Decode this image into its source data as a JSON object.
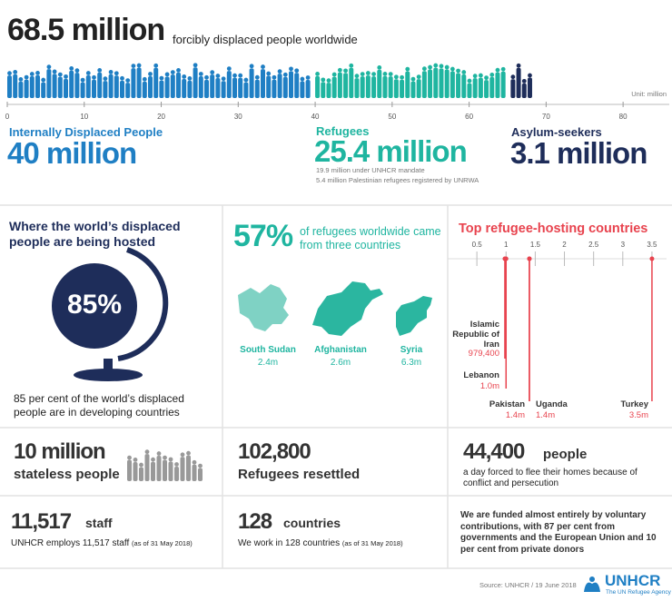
{
  "header": {
    "title": "68.5 million",
    "subtitle": "forcibly displaced people worldwide"
  },
  "population": {
    "unit": "Unit: million",
    "xlim": [
      0,
      86
    ],
    "xticks": [
      0,
      10,
      20,
      30,
      40,
      50,
      60,
      70,
      80
    ],
    "segments": [
      {
        "name": "Internally Displaced People",
        "value": 40,
        "label": "40 million",
        "color": "#1f7fc4"
      },
      {
        "name": "Refugees",
        "value": 25.4,
        "label": "25.4 million",
        "color": "#1fb5a0",
        "notes": [
          "19.9 million under UNHCR mandate",
          "5.4 million Palestinian refugees registered by UNRWA"
        ]
      },
      {
        "name": "Asylum-seekers",
        "value": 3.1,
        "label": "3.1 million",
        "color": "#1e2d5a"
      }
    ]
  },
  "hosting": {
    "heading": "Where the world’s displaced people are being hosted",
    "figure": "85%",
    "caption": "85 per cent of the world’s displaced people are in developing countries"
  },
  "origins": {
    "figure": "57%",
    "text": "of refugees worldwide came from three countries",
    "countries": [
      {
        "name": "South Sudan",
        "label": "2.4m"
      },
      {
        "name": "Afghanistan",
        "label": "2.6m"
      },
      {
        "name": "Syria",
        "label": "6.3m"
      }
    ]
  },
  "top_hosts": {
    "title": "Top refugee-hosting countries",
    "xlim": [
      0,
      3.75
    ],
    "xticks": [
      0.5,
      1,
      1.5,
      2,
      2.5,
      3,
      3.5
    ],
    "color": "#e8434e",
    "countries": [
      {
        "name": "Islamic Republic of Iran",
        "value": 0.9794,
        "label": "979,400"
      },
      {
        "name": "Lebanon",
        "value": 1.0,
        "label": "1.0m"
      },
      {
        "name": "Pakistan",
        "value": 1.4,
        "label": "1.4m"
      },
      {
        "name": "Uganda",
        "value": 1.4,
        "label": "1.4m"
      },
      {
        "name": "Turkey",
        "value": 3.5,
        "label": "3.5m"
      }
    ]
  },
  "stats": {
    "stateless": {
      "figure": "10 million",
      "text": "stateless people"
    },
    "resettled": {
      "figure": "102,800",
      "text": "Refugees resettled"
    },
    "daily": {
      "figure": "44,400",
      "unit": "people",
      "text": "a day forced to flee their homes because of conflict and persecution"
    },
    "staff": {
      "figure": "11,517",
      "unit": "staff",
      "text": "UNHCR employs 11,517 staff",
      "note": "(as of 31 May 2018)"
    },
    "countries": {
      "figure": "128",
      "unit": "countries",
      "text": "We work in 128 countries",
      "note": "(as of 31 May 2018)"
    },
    "funding": {
      "text": "We are funded almost entirely by voluntary contributions, with 87 per cent from governments and the European Union and 10 per cent from private donors"
    }
  },
  "footer": {
    "source": "Source: UNHCR / 19 June 2018",
    "logo": "UNHCR",
    "tagline": "The UN Refugee Agency"
  }
}
